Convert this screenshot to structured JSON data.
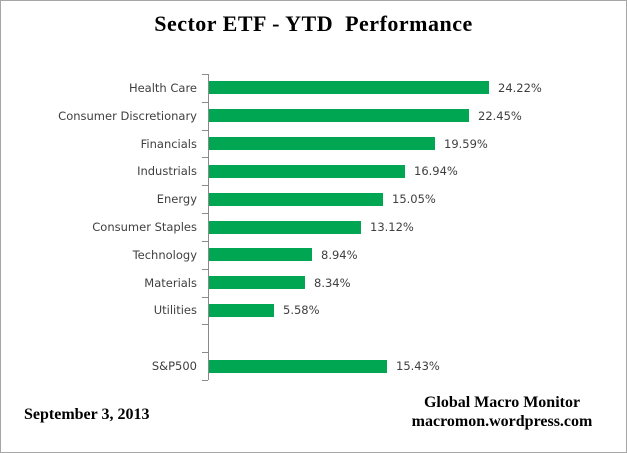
{
  "title": "Sector ETF - YTD  Performance",
  "footer": {
    "date": "September 3, 2013",
    "source_line1": "Global Macro Monitor",
    "source_line2": "macromon.wordpress.com"
  },
  "colors": {
    "bar_green": "#00A651",
    "axis_gray": "#8a8a8a",
    "label_gray": "#3f3f3f"
  },
  "chart_data": {
    "type": "bar",
    "orientation": "horizontal",
    "title": "Sector ETF - YTD  Performance",
    "categories": [
      "Health Care",
      "Consumer Discretionary",
      "Financials",
      "Industrials",
      "Energy",
      "Consumer Staples",
      "Technology",
      "Materials",
      "Utilities",
      "",
      "S&P500"
    ],
    "values": [
      24.22,
      22.45,
      19.59,
      16.94,
      15.05,
      13.12,
      8.94,
      8.34,
      5.58,
      null,
      15.43
    ],
    "value_labels": [
      "24.22%",
      "22.45%",
      "19.59%",
      "16.94%",
      "15.05%",
      "13.12%",
      "8.94%",
      "8.34%",
      "5.58%",
      "",
      "15.43%"
    ],
    "xlabel": "",
    "ylabel": "",
    "xlim": [
      0,
      30
    ],
    "grid": false,
    "legend": false,
    "value_label_format": "0.00%"
  }
}
